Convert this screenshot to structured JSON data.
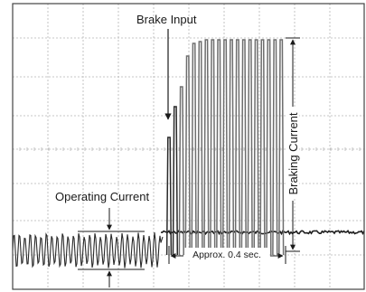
{
  "annotations": {
    "brake_input": "Brake Input",
    "operating_current": "Operating Current",
    "braking_current": "Braking Current",
    "duration": "Approx. 0.4 sec."
  },
  "colors": {
    "grid": "#b5b5b5",
    "trace": "#2a2a2a",
    "pulse": "#6e6e6e",
    "frame": "#444444"
  }
}
